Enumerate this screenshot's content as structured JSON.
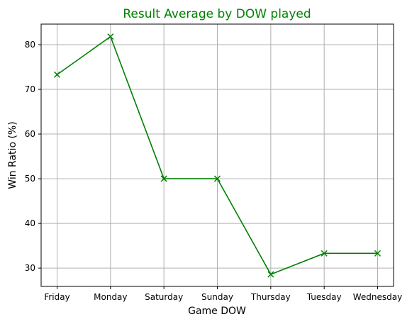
{
  "chart_data": {
    "type": "line",
    "title": "Result Average by DOW played",
    "xlabel": "Game DOW",
    "ylabel": "Win Ratio (%)",
    "categories": [
      "Friday",
      "Monday",
      "Saturday",
      "Sunday",
      "Thursday",
      "Tuesday",
      "Wednesday"
    ],
    "series": [
      {
        "values": [
          73.3,
          81.8,
          50.0,
          50.0,
          28.6,
          33.3,
          33.3
        ],
        "color": "#008000",
        "marker": "x"
      }
    ],
    "yticks": [
      30,
      40,
      50,
      60,
      70,
      80
    ],
    "ylim": [
      25.9,
      84.6
    ],
    "grid": true,
    "title_color": "#008000"
  }
}
